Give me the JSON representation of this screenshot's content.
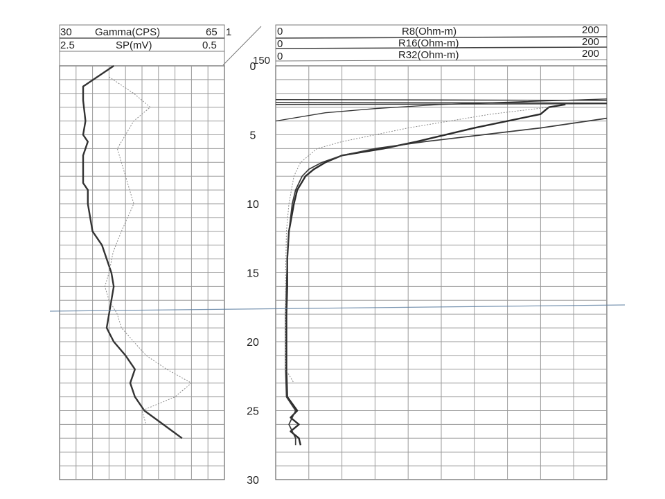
{
  "chart_data": [
    {
      "type": "line",
      "track": "left",
      "series": [
        {
          "name": "Gamma(CPS)",
          "scale_min": "30",
          "scale_max": "65",
          "scale_min_value": 30,
          "scale_max_value": 65,
          "style": "solid-thick",
          "color": "#333333",
          "depth": [
            0,
            1.5,
            2.5,
            4,
            5,
            5.5,
            6.5,
            8.5,
            9,
            10,
            11,
            12,
            13,
            14,
            15,
            16,
            17,
            18,
            19,
            20,
            21,
            22,
            23,
            24,
            25,
            26,
            27
          ],
          "values": [
            41.5,
            35,
            35,
            35.5,
            35,
            36,
            35,
            35,
            36,
            36,
            36.5,
            37,
            39,
            40,
            41,
            41.5,
            41,
            40.5,
            40,
            41.5,
            44,
            46,
            45,
            46,
            48,
            52,
            56
          ]
        },
        {
          "name": "SP(mV)",
          "scale_min": "2.5",
          "scale_max": "0.5",
          "scale_min_value": 2.5,
          "scale_max_value": 0.5,
          "style": "dotted",
          "color": "#8a8a8a",
          "depth": [
            0.8,
            2,
            3,
            4,
            6,
            8,
            10,
            12,
            13.5,
            15,
            16,
            17,
            18,
            19,
            20,
            21,
            22,
            23,
            24,
            25,
            26
          ],
          "values": [
            1.9,
            1.6,
            1.4,
            1.6,
            1.8,
            1.7,
            1.6,
            1.75,
            1.85,
            1.9,
            1.95,
            1.9,
            1.8,
            1.75,
            1.6,
            1.45,
            1.2,
            0.9,
            1.1,
            1.5,
            1.45
          ]
        }
      ]
    },
    {
      "type": "line",
      "track": "right",
      "series": [
        {
          "name": "R8(Ohm-m)",
          "scale_min": "0",
          "scale_max": "200",
          "scale_min_value": 0,
          "scale_max_value": 200,
          "style": "solid-thin",
          "color": "#333333",
          "depth": [
            4,
            3.4,
            3.1,
            2.8,
            2.6,
            2.4
          ],
          "values": [
            0,
            30,
            60,
            100,
            150,
            200
          ]
        },
        {
          "name": "R16(Ohm-m)",
          "scale_min": "0",
          "scale_max": "200",
          "scale_min_value": 0,
          "scale_max_value": 200,
          "style": "solid-thick",
          "color": "#2a2a2a",
          "depth": [
            2.8,
            3,
            3.5,
            4.5,
            5.5,
            6,
            6.5,
            7,
            7.5,
            8,
            9,
            10,
            12,
            14,
            16,
            18,
            20,
            22,
            24,
            25,
            25.5,
            26,
            26.5,
            27,
            27.5
          ],
          "values": [
            175,
            165,
            160,
            120,
            85,
            65,
            40,
            30,
            23,
            18,
            13,
            11,
            8,
            7,
            7,
            6.5,
            6.5,
            6.5,
            7,
            13,
            9,
            14,
            9,
            14,
            15
          ]
        },
        {
          "name": "R32(Ohm-m)",
          "scale_min": "0",
          "scale_max": "200",
          "scale_min_value": 0,
          "scale_max_value": 200,
          "style": "solid-medium",
          "color": "#3a3a3a",
          "depth": [
            3.8,
            4.5,
            5,
            5.5,
            6,
            6.5,
            7,
            7.5,
            8,
            9,
            10,
            12,
            14,
            16,
            18,
            20,
            22,
            24,
            25,
            26,
            27,
            27.5
          ],
          "values": [
            200,
            160,
            125,
            90,
            60,
            40,
            28,
            20,
            16,
            12,
            10,
            8,
            7,
            6.5,
            6,
            6,
            6,
            6.5,
            12,
            8,
            12,
            12
          ]
        },
        {
          "name": "",
          "style": "dotted",
          "color": "#8a8a8a",
          "depth": [
            3,
            3.5,
            4.5,
            5.5,
            6,
            7,
            8,
            10,
            12,
            15,
            18,
            20,
            22,
            23
          ],
          "values": [
            165,
            130,
            80,
            40,
            25,
            15,
            11,
            8,
            6.5,
            6,
            6,
            6,
            6,
            11
          ]
        }
      ]
    }
  ],
  "depth_track": {
    "top_label": "150",
    "scale_marker": "1",
    "ticks": [
      {
        "depth": 0,
        "label": "0"
      },
      {
        "depth": 5,
        "label": "5"
      },
      {
        "depth": 10,
        "label": "10"
      },
      {
        "depth": 15,
        "label": "15"
      },
      {
        "depth": 20,
        "label": "20"
      },
      {
        "depth": 25,
        "label": "25"
      },
      {
        "depth": 30,
        "label": "30"
      }
    ]
  }
}
